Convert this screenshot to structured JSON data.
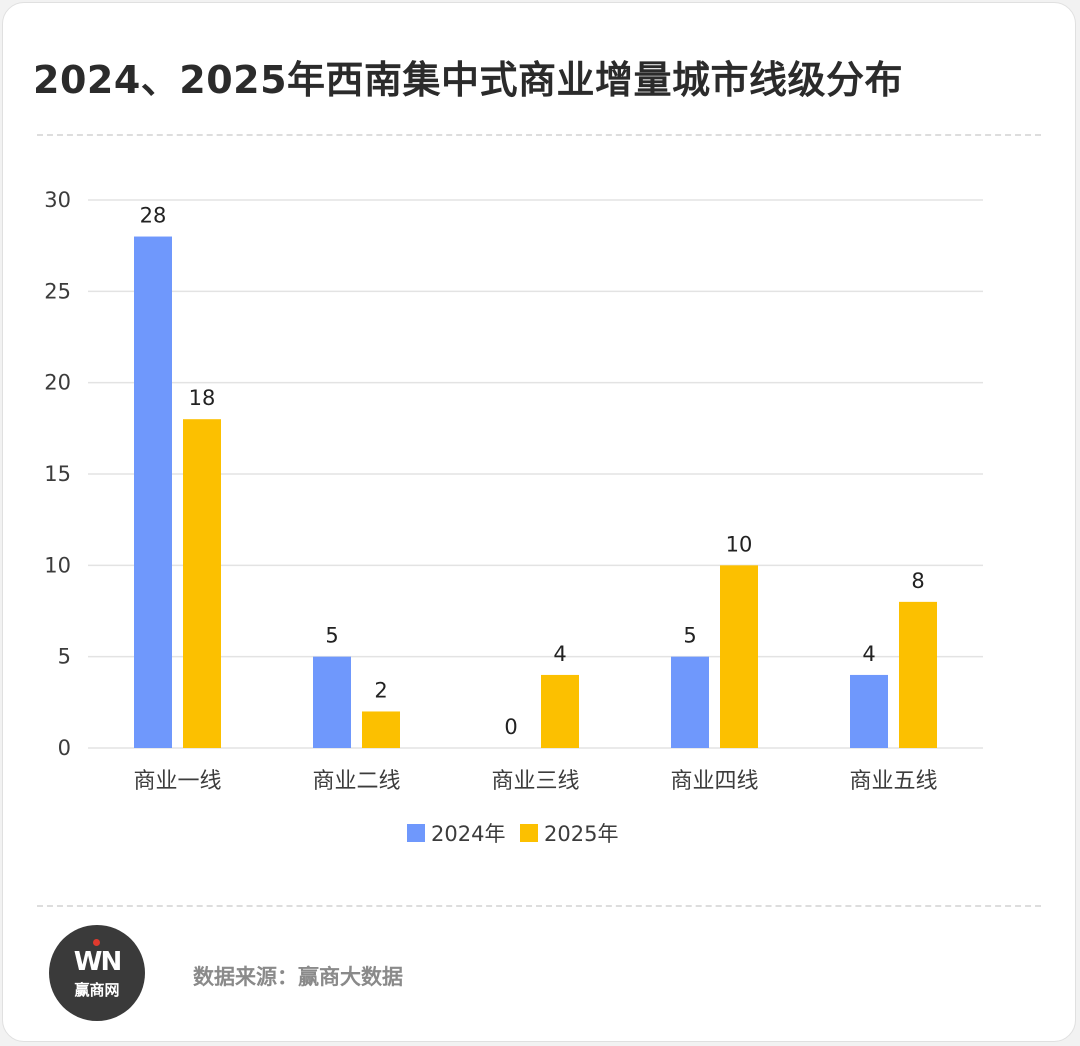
{
  "title": "2024、2025年西南集中式商业增量城市线级分布",
  "footer": {
    "source": "数据来源：赢商大数据",
    "logo_mark": "WN",
    "logo_text": "赢商网"
  },
  "colors": {
    "series_2024": "#6f98fc",
    "series_2025": "#fcc000",
    "grid": "#e3e3e3",
    "axis_text": "#3c3c3c"
  },
  "chart_data": {
    "type": "bar",
    "categories": [
      "商业一线",
      "商业二线",
      "商业三线",
      "商业四线",
      "商业五线"
    ],
    "series": [
      {
        "name": "2024年",
        "values": [
          28,
          5,
          0,
          5,
          4
        ]
      },
      {
        "name": "2025年",
        "values": [
          18,
          2,
          4,
          10,
          8
        ]
      }
    ],
    "y_ticks": [
      "0",
      "5",
      "10",
      "15",
      "20",
      "25",
      "30"
    ],
    "ylim": [
      0,
      30
    ],
    "grid": true,
    "legend_position": "bottom"
  }
}
